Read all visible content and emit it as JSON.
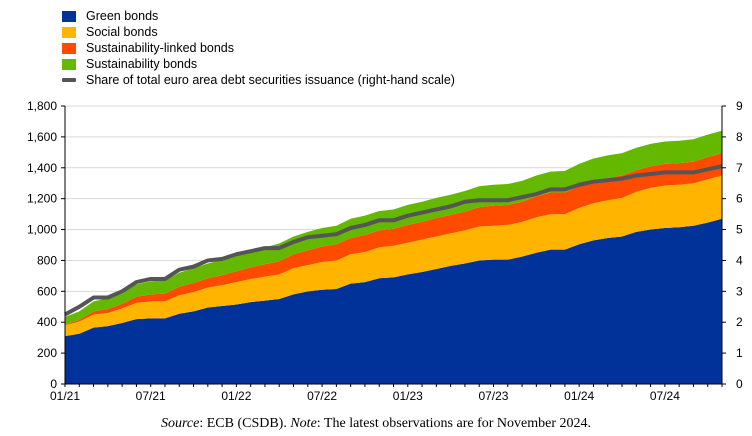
{
  "legend": [
    {
      "label": "Green bonds",
      "color": "#003299",
      "kind": "area"
    },
    {
      "label": "Social bonds",
      "color": "#FFB400",
      "kind": "area"
    },
    {
      "label": "Sustainability-linked bonds",
      "color": "#FF4B00",
      "kind": "area"
    },
    {
      "label": "Sustainability bonds",
      "color": "#65B800",
      "kind": "area"
    },
    {
      "label": "Share of total euro area debt securities issuance (right-hand scale)",
      "color": "#555555",
      "kind": "line"
    }
  ],
  "caption": {
    "source_label": "Source",
    "source_text": ": ECB (CSDB). ",
    "note_label": "Note",
    "note_text": ": The latest observations are for November 2024."
  },
  "chart_data": {
    "type": "area",
    "stacked": true,
    "x": [
      "01/21",
      "02/21",
      "03/21",
      "04/21",
      "05/21",
      "06/21",
      "07/21",
      "08/21",
      "09/21",
      "10/21",
      "11/21",
      "12/21",
      "01/22",
      "02/22",
      "03/22",
      "04/22",
      "05/22",
      "06/22",
      "07/22",
      "08/22",
      "09/22",
      "10/22",
      "11/22",
      "12/22",
      "01/23",
      "02/23",
      "03/23",
      "04/23",
      "05/23",
      "06/23",
      "07/23",
      "08/23",
      "09/23",
      "10/23",
      "11/23",
      "12/23",
      "01/24",
      "02/24",
      "03/24",
      "04/24",
      "05/24",
      "06/24",
      "07/24",
      "08/24",
      "09/24",
      "10/24",
      "11/24"
    ],
    "xticks": [
      "01/21",
      "07/21",
      "01/22",
      "07/22",
      "01/23",
      "07/23",
      "01/24",
      "07/24"
    ],
    "left_axis": {
      "min": 0,
      "max": 1800,
      "step": 200,
      "ticks": [
        "0",
        "200",
        "400",
        "600",
        "800",
        "1,000",
        "1,200",
        "1,400",
        "1,600",
        "1,800"
      ]
    },
    "right_axis": {
      "min": 0,
      "max": 9,
      "step": 1,
      "ticks": [
        "0",
        "1",
        "2",
        "3",
        "4",
        "5",
        "6",
        "7",
        "8",
        "9"
      ]
    },
    "grid": true,
    "series": [
      {
        "name": "Green bonds",
        "color": "#003299",
        "values": [
          310,
          325,
          365,
          375,
          395,
          420,
          425,
          425,
          455,
          470,
          495,
          505,
          515,
          530,
          540,
          550,
          580,
          600,
          610,
          615,
          650,
          660,
          685,
          690,
          710,
          725,
          745,
          765,
          780,
          800,
          805,
          805,
          825,
          850,
          870,
          870,
          905,
          930,
          945,
          955,
          985,
          1000,
          1010,
          1015,
          1025,
          1045,
          1070
        ]
      },
      {
        "name": "Social bonds",
        "color": "#FFB400",
        "values": [
          70,
          80,
          85,
          85,
          95,
          105,
          110,
          110,
          120,
          125,
          130,
          135,
          145,
          150,
          155,
          160,
          170,
          170,
          180,
          185,
          190,
          195,
          200,
          205,
          205,
          210,
          210,
          210,
          215,
          220,
          220,
          225,
          225,
          230,
          230,
          230,
          235,
          240,
          245,
          250,
          260,
          270,
          275,
          275,
          275,
          280,
          280
        ]
      },
      {
        "name": "Sustainability-linked bonds",
        "color": "#FF4B00",
        "values": [
          5,
          10,
          20,
          25,
          30,
          40,
          45,
          50,
          55,
          60,
          60,
          65,
          70,
          75,
          80,
          85,
          90,
          95,
          100,
          105,
          105,
          110,
          110,
          110,
          115,
          115,
          120,
          120,
          120,
          125,
          130,
          130,
          130,
          135,
          140,
          140,
          140,
          145,
          145,
          145,
          140,
          140,
          140,
          140,
          140,
          145,
          145
        ]
      },
      {
        "name": "Sustainability bonds",
        "color": "#65B800",
        "values": [
          50,
          55,
          65,
          70,
          75,
          80,
          85,
          85,
          90,
          95,
          95,
          100,
          105,
          110,
          110,
          115,
          115,
          120,
          120,
          120,
          125,
          125,
          125,
          125,
          130,
          130,
          130,
          130,
          135,
          135,
          135,
          135,
          135,
          135,
          135,
          140,
          145,
          145,
          145,
          145,
          145,
          145,
          145,
          145,
          145,
          145,
          145
        ]
      }
    ],
    "line_series": {
      "name": "Share of total euro area debt securities issuance (right-hand scale)",
      "color": "#555555",
      "axis": "right",
      "values": [
        2.25,
        2.5,
        2.8,
        2.8,
        3.0,
        3.3,
        3.4,
        3.4,
        3.7,
        3.8,
        4.0,
        4.05,
        4.2,
        4.3,
        4.4,
        4.4,
        4.6,
        4.75,
        4.8,
        4.85,
        5.05,
        5.15,
        5.3,
        5.3,
        5.45,
        5.55,
        5.65,
        5.75,
        5.9,
        5.95,
        5.95,
        5.95,
        6.05,
        6.15,
        6.3,
        6.3,
        6.45,
        6.55,
        6.6,
        6.65,
        6.75,
        6.8,
        6.85,
        6.85,
        6.85,
        6.95,
        7.05
      ]
    }
  }
}
